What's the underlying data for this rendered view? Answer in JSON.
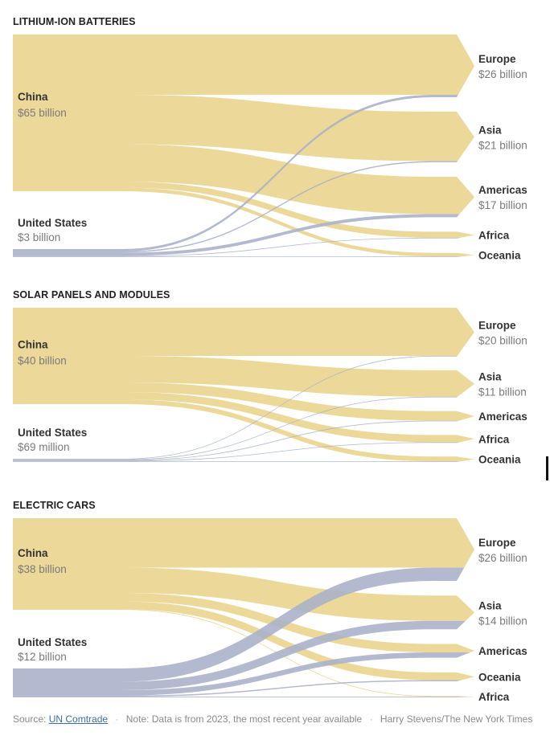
{
  "colors": {
    "China": "#e9d38a",
    "United States": "#a8b0c8",
    "text": "#333333",
    "value_text": "#7a7a7a"
  },
  "chart_data": [
    {
      "type": "sankey",
      "title": "LITHIUM-ION BATTERIES",
      "sources": [
        {
          "name": "China",
          "value_label": "$65 billion",
          "value": 65
        },
        {
          "name": "United States",
          "value_label": "$3 billion",
          "value": 3
        }
      ],
      "targets": [
        {
          "name": "Europe",
          "value_label": "$26 billion"
        },
        {
          "name": "Asia",
          "value_label": "$21 billion"
        },
        {
          "name": "Americas",
          "value_label": "$17 billion"
        },
        {
          "name": "Africa",
          "value_label": ""
        },
        {
          "name": "Oceania",
          "value_label": ""
        }
      ],
      "flows": [
        {
          "source": "China",
          "target": "Europe",
          "value": 25
        },
        {
          "source": "China",
          "target": "Asia",
          "value": 20.5
        },
        {
          "source": "China",
          "target": "Americas",
          "value": 15.5
        },
        {
          "source": "China",
          "target": "Africa",
          "value": 2.5
        },
        {
          "source": "China",
          "target": "Oceania",
          "value": 1.5
        },
        {
          "source": "United States",
          "target": "Europe",
          "value": 1
        },
        {
          "source": "United States",
          "target": "Asia",
          "value": 0.5
        },
        {
          "source": "United States",
          "target": "Americas",
          "value": 1.3
        },
        {
          "source": "United States",
          "target": "Africa",
          "value": 0.1
        },
        {
          "source": "United States",
          "target": "Oceania",
          "value": 0.1
        }
      ]
    },
    {
      "type": "sankey",
      "title": "SOLAR PANELS AND MODULES",
      "sources": [
        {
          "name": "China",
          "value_label": "$40 billion",
          "value": 40
        },
        {
          "name": "United States",
          "value_label": "$69 million",
          "value": 0.069
        }
      ],
      "targets": [
        {
          "name": "Europe",
          "value_label": "$20 billion"
        },
        {
          "name": "Asia",
          "value_label": "$11 billion"
        },
        {
          "name": "Americas",
          "value_label": ""
        },
        {
          "name": "Africa",
          "value_label": ""
        },
        {
          "name": "Oceania",
          "value_label": ""
        }
      ],
      "flows": [
        {
          "source": "China",
          "target": "Europe",
          "value": 20
        },
        {
          "source": "China",
          "target": "Asia",
          "value": 11
        },
        {
          "source": "China",
          "target": "Americas",
          "value": 4
        },
        {
          "source": "China",
          "target": "Africa",
          "value": 3
        },
        {
          "source": "China",
          "target": "Oceania",
          "value": 2
        },
        {
          "source": "United States",
          "target": "Europe",
          "value": 0.02
        },
        {
          "source": "United States",
          "target": "Asia",
          "value": 0.02
        },
        {
          "source": "United States",
          "target": "Americas",
          "value": 0.02
        },
        {
          "source": "United States",
          "target": "Africa",
          "value": 0.005
        },
        {
          "source": "United States",
          "target": "Oceania",
          "value": 0.004
        }
      ]
    },
    {
      "type": "sankey",
      "title": "ELECTRIC CARS",
      "sources": [
        {
          "name": "China",
          "value_label": "$38 billion",
          "value": 38
        },
        {
          "name": "United States",
          "value_label": "$12 billion",
          "value": 12
        }
      ],
      "targets": [
        {
          "name": "Europe",
          "value_label": "$26 billion"
        },
        {
          "name": "Asia",
          "value_label": "$14 billion"
        },
        {
          "name": "Americas",
          "value_label": ""
        },
        {
          "name": "Oceania",
          "value_label": ""
        },
        {
          "name": "Africa",
          "value_label": ""
        }
      ],
      "flows": [
        {
          "source": "China",
          "target": "Europe",
          "value": 20.5
        },
        {
          "source": "China",
          "target": "Asia",
          "value": 10.5
        },
        {
          "source": "China",
          "target": "Americas",
          "value": 3.5
        },
        {
          "source": "China",
          "target": "Oceania",
          "value": 3.2
        },
        {
          "source": "China",
          "target": "Africa",
          "value": 0.3
        },
        {
          "source": "United States",
          "target": "Europe",
          "value": 5.5
        },
        {
          "source": "United States",
          "target": "Asia",
          "value": 3.5
        },
        {
          "source": "United States",
          "target": "Americas",
          "value": 2.2
        },
        {
          "source": "United States",
          "target": "Oceania",
          "value": 0.5
        },
        {
          "source": "United States",
          "target": "Africa",
          "value": 0.3
        }
      ]
    }
  ],
  "footer": {
    "source_prefix": "Source:",
    "source_link": "UN Comtrade",
    "note": "Note: Data is from 2023, the most recent year available",
    "credit": "Harry Stevens/The New York Times",
    "separator": "·"
  }
}
